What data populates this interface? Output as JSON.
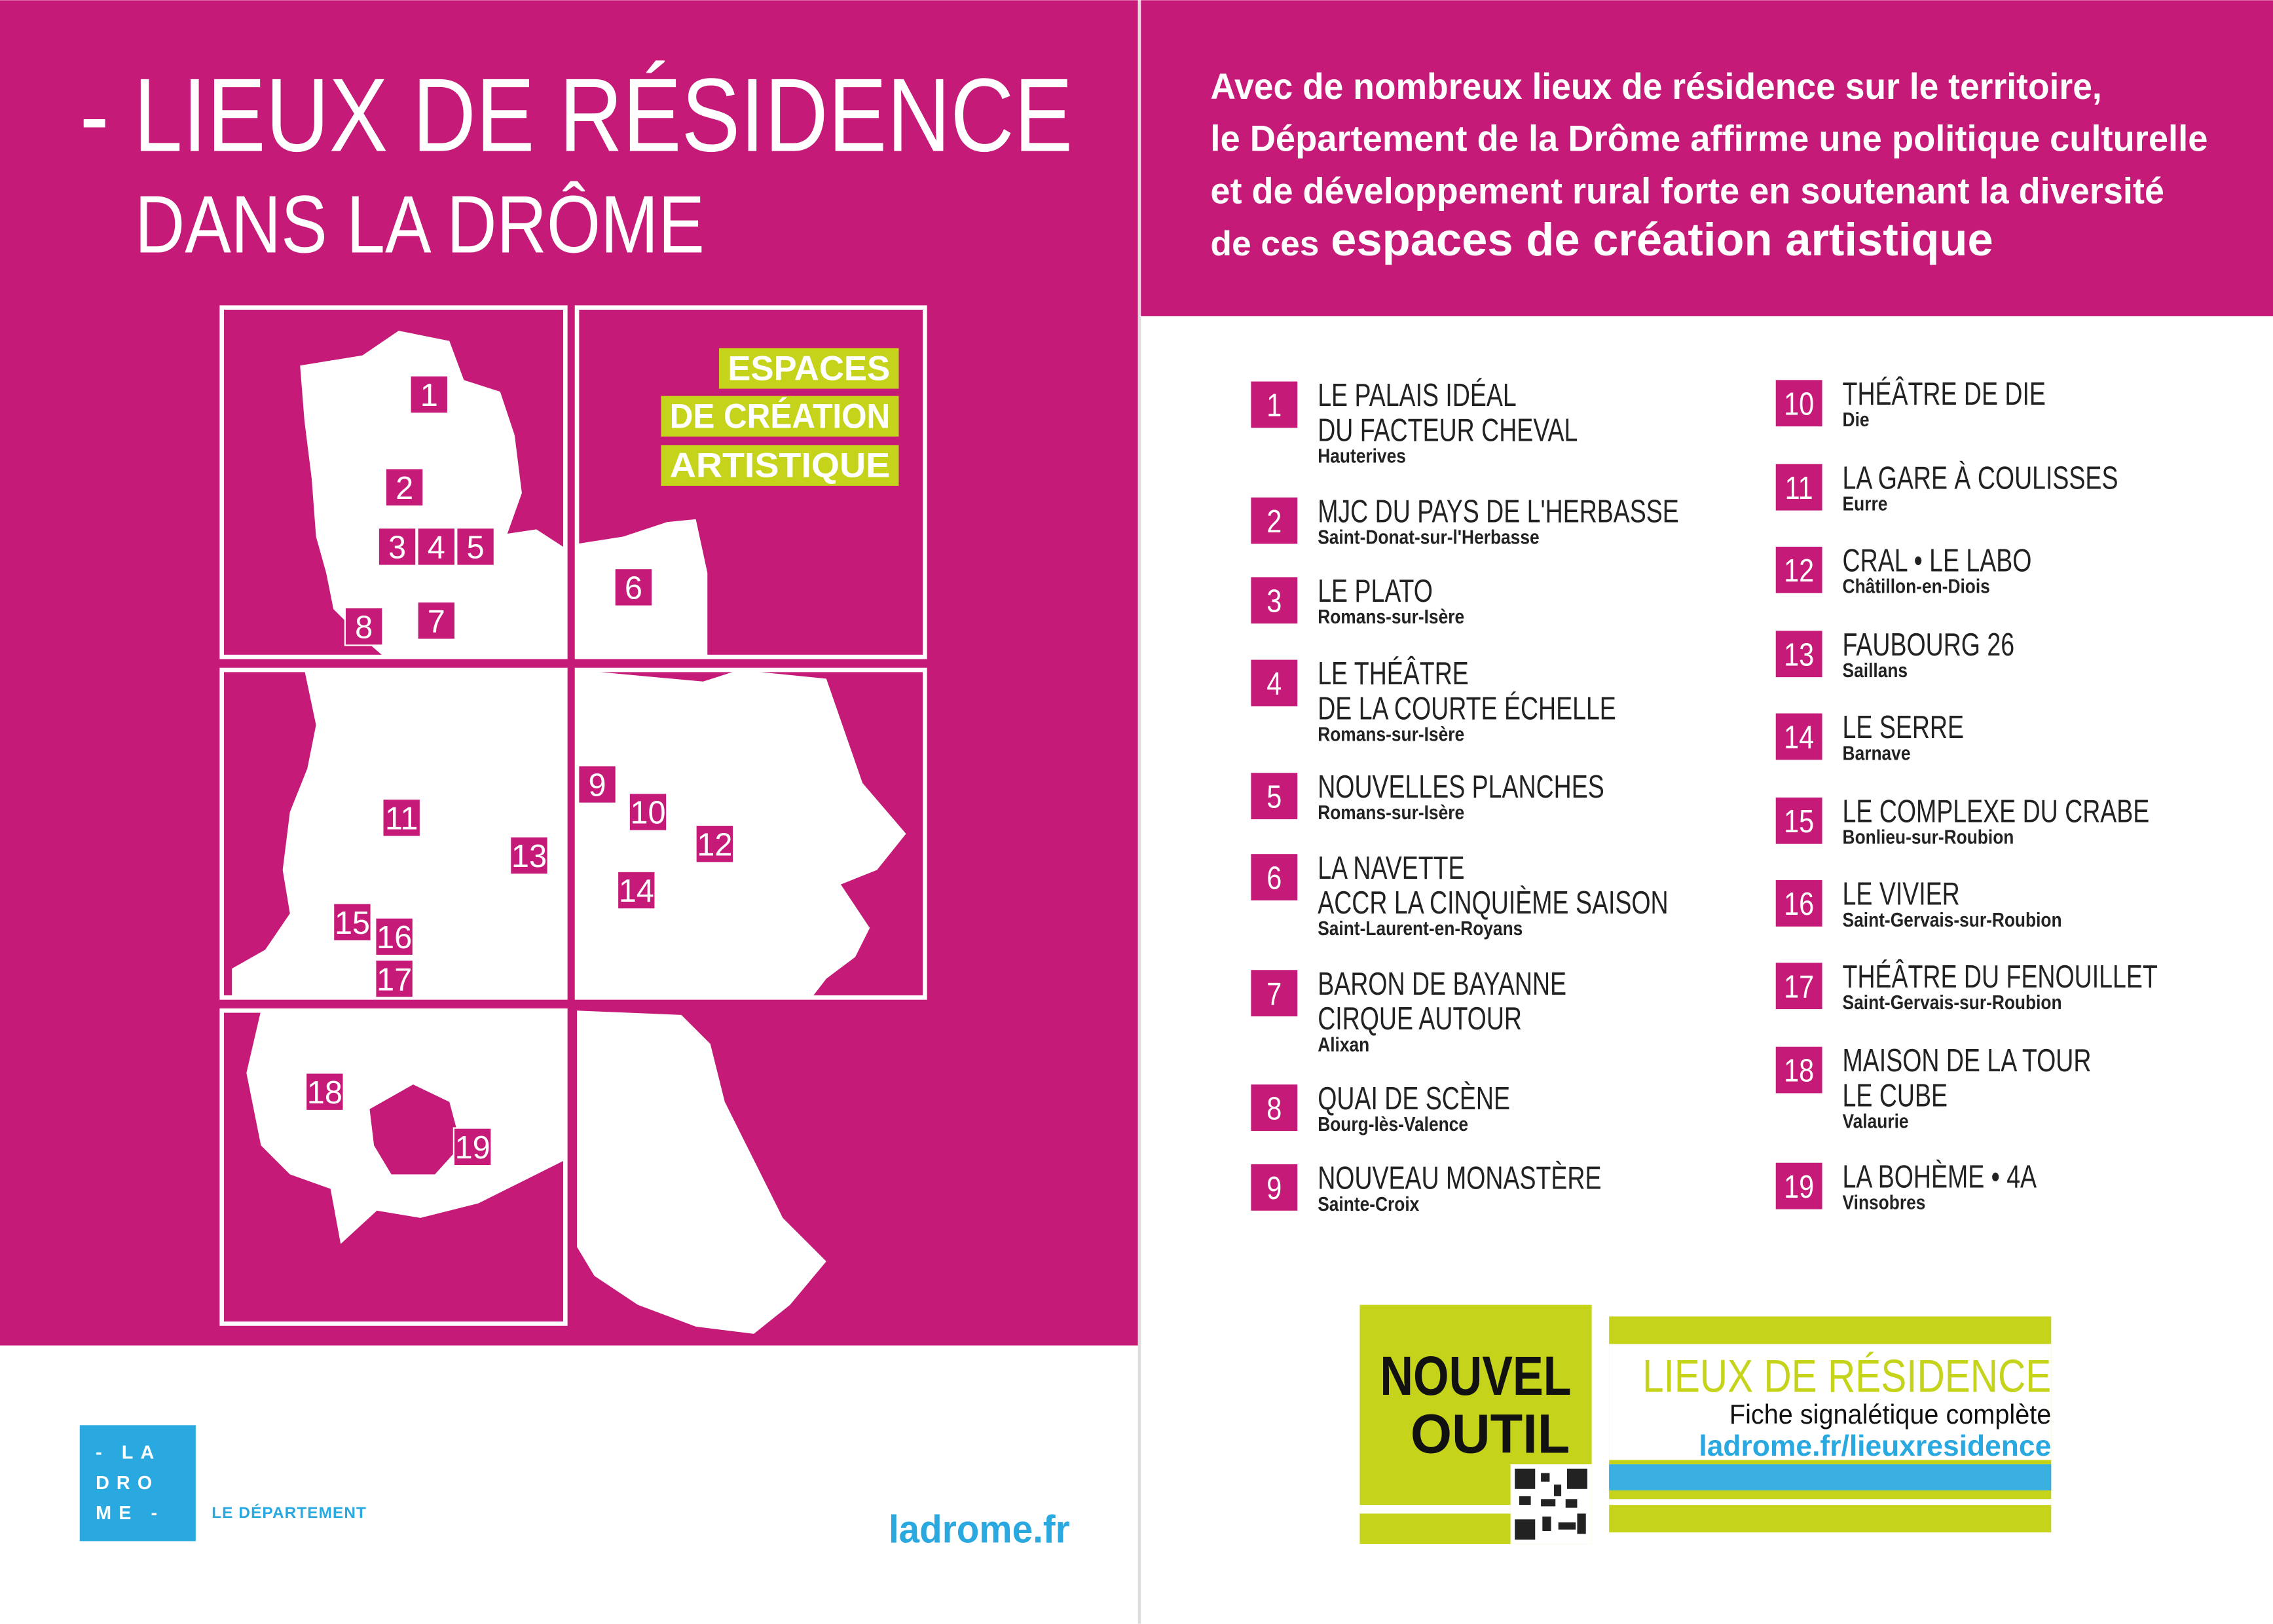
{
  "left_page": {
    "title": [
      "- LIEUX DE RÉSIDENCE",
      "DANS LA DRÔME"
    ],
    "map_label": [
      "ESPACES",
      "DE CRÉATION",
      "ARTISTIQUE"
    ],
    "map_markers": [
      1,
      2,
      3,
      4,
      5,
      6,
      7,
      8,
      9,
      10,
      11,
      12,
      13,
      14,
      15,
      16,
      17,
      18,
      19
    ],
    "logo": {
      "lines": [
        "- LA",
        "DRO",
        "ME -"
      ],
      "caption": "LE DÉPARTEMENT"
    },
    "website": "ladrome.fr"
  },
  "right_page": {
    "intro_lines": [
      "Avec de nombreux lieux de résidence sur le territoire,",
      "le Département de la Drôme affirme une politique culturelle",
      "et de développement rural forte en soutenant la diversité"
    ],
    "intro_last": {
      "prefix": "de ces",
      "highlight": "espaces de création artistique"
    },
    "venues": [
      {
        "number": 1,
        "name": [
          "LE PALAIS IDÉAL",
          "DU FACTEUR CHEVAL"
        ],
        "town": "Hauterives"
      },
      {
        "number": 2,
        "name": [
          "MJC DU PAYS DE L'HERBASSE"
        ],
        "town": "Saint-Donat-sur-l'Herbasse"
      },
      {
        "number": 3,
        "name": [
          "LE PLATO"
        ],
        "town": "Romans-sur-Isère"
      },
      {
        "number": 4,
        "name": [
          "LE THÉÂTRE",
          "DE LA COURTE ÉCHELLE"
        ],
        "town": "Romans-sur-Isère"
      },
      {
        "number": 5,
        "name": [
          "NOUVELLES PLANCHES"
        ],
        "town": "Romans-sur-Isère"
      },
      {
        "number": 6,
        "name": [
          "LA NAVETTE",
          "ACCR LA CINQUIÈME SAISON"
        ],
        "town": "Saint-Laurent-en-Royans"
      },
      {
        "number": 7,
        "name": [
          "BARON DE BAYANNE",
          "CIRQUE AUTOUR"
        ],
        "town": "Alixan"
      },
      {
        "number": 8,
        "name": [
          "QUAI DE SCÈNE"
        ],
        "town": "Bourg-lès-Valence"
      },
      {
        "number": 9,
        "name": [
          "NOUVEAU MONASTÈRE"
        ],
        "town": "Sainte-Croix"
      },
      {
        "number": 10,
        "name": [
          "THÉÂTRE DE DIE"
        ],
        "town": "Die"
      },
      {
        "number": 11,
        "name": [
          "LA GARE À COULISSES"
        ],
        "town": "Eurre"
      },
      {
        "number": 12,
        "name": [
          "CRAL • LE LABO"
        ],
        "town": "Châtillon-en-Diois"
      },
      {
        "number": 13,
        "name": [
          "FAUBOURG 26"
        ],
        "town": "Saillans"
      },
      {
        "number": 14,
        "name": [
          "LE SERRE"
        ],
        "town": "Barnave"
      },
      {
        "number": 15,
        "name": [
          "LE COMPLEXE DU CRABE"
        ],
        "town": "Bonlieu-sur-Roubion"
      },
      {
        "number": 16,
        "name": [
          "LE VIVIER"
        ],
        "town": "Saint-Gervais-sur-Roubion"
      },
      {
        "number": 17,
        "name": [
          "THÉÂTRE DU FENOUILLET"
        ],
        "town": "Saint-Gervais-sur-Roubion"
      },
      {
        "number": 18,
        "name": [
          "MAISON DE LA TOUR",
          "LE CUBE"
        ],
        "town": "Valaurie"
      },
      {
        "number": 19,
        "name": [
          "LA BOHÈME • 4A"
        ],
        "town": "Vinsobres"
      }
    ],
    "promo": {
      "badge": [
        "NOUVEL",
        "OUTIL"
      ],
      "title": "LIEUX DE RÉSIDENCE",
      "subtitle": "Fiche signalétique complète",
      "url": "ladrome.fr/lieuxresidence"
    }
  }
}
